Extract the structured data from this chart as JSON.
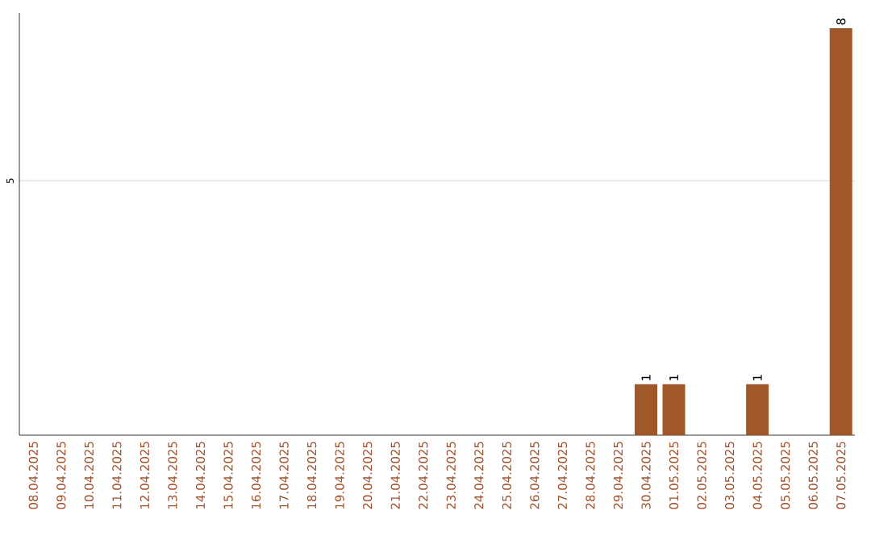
{
  "chart_data": {
    "type": "bar",
    "categories": [
      "08.04.2025",
      "09.04.2025",
      "10.04.2025",
      "11.04.2025",
      "12.04.2025",
      "13.04.2025",
      "14.04.2025",
      "15.04.2025",
      "16.04.2025",
      "17.04.2025",
      "18.04.2025",
      "19.04.2025",
      "20.04.2025",
      "21.04.2025",
      "22.04.2025",
      "23.04.2025",
      "24.04.2025",
      "25.04.2025",
      "26.04.2025",
      "27.04.2025",
      "28.04.2025",
      "29.04.2025",
      "30.04.2025",
      "01.05.2025",
      "02.05.2025",
      "03.05.2025",
      "04.05.2025",
      "05.05.2025",
      "06.05.2025",
      "07.05.2025"
    ],
    "values": [
      null,
      null,
      null,
      null,
      null,
      null,
      null,
      null,
      null,
      null,
      null,
      null,
      null,
      null,
      null,
      null,
      null,
      null,
      null,
      null,
      null,
      null,
      1,
      1,
      null,
      null,
      1,
      null,
      null,
      8
    ],
    "data_labels": true,
    "color": "#a0582a",
    "ylim": [
      0,
      8.3
    ],
    "yticks": [
      5
    ],
    "grid": "y"
  }
}
